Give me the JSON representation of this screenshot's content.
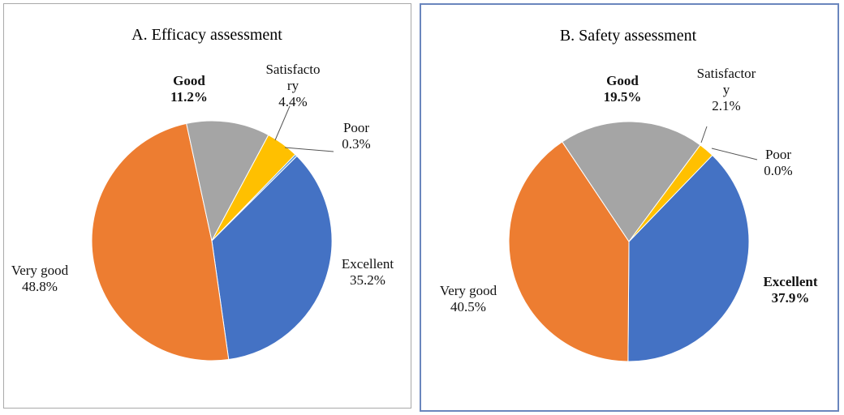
{
  "colors": {
    "Excellent": "#4472c4",
    "Very good": "#ed7d31",
    "Good": "#a5a5a5",
    "Satisfactory": "#ffc000",
    "Poor": "#5b9bd5"
  },
  "chart_data": [
    {
      "type": "pie",
      "title": "A. Efficacy  assessment",
      "slices": [
        {
          "category": "Excellent",
          "value": 35.2,
          "label_lines": [
            "Excellent",
            "35.2%"
          ]
        },
        {
          "category": "Very good",
          "value": 48.8,
          "label_lines": [
            "Very good",
            "48.8%"
          ]
        },
        {
          "category": "Good",
          "value": 11.2,
          "label_lines": [
            "Good",
            "11.2%"
          ]
        },
        {
          "category": "Satisfactory",
          "value": 4.4,
          "label_lines": [
            "Satisfacto",
            "ry",
            "4.4%"
          ]
        },
        {
          "category": "Poor",
          "value": 0.3,
          "label_lines": [
            "Poor",
            "0.3%"
          ]
        }
      ]
    },
    {
      "type": "pie",
      "title": "B. Safety  assessment",
      "slices": [
        {
          "category": "Excellent",
          "value": 37.9,
          "label_lines": [
            "Excellent",
            "37.9%"
          ]
        },
        {
          "category": "Very good",
          "value": 40.5,
          "label_lines": [
            "Very good",
            "40.5%"
          ]
        },
        {
          "category": "Good",
          "value": 19.5,
          "label_lines": [
            "Good",
            "19.5%"
          ]
        },
        {
          "category": "Satisfactory",
          "value": 2.1,
          "label_lines": [
            "Satisfactor",
            "y",
            "2.1%"
          ]
        },
        {
          "category": "Poor",
          "value": 0.0,
          "label_lines": [
            "Poor",
            "0.0%"
          ]
        }
      ]
    }
  ]
}
